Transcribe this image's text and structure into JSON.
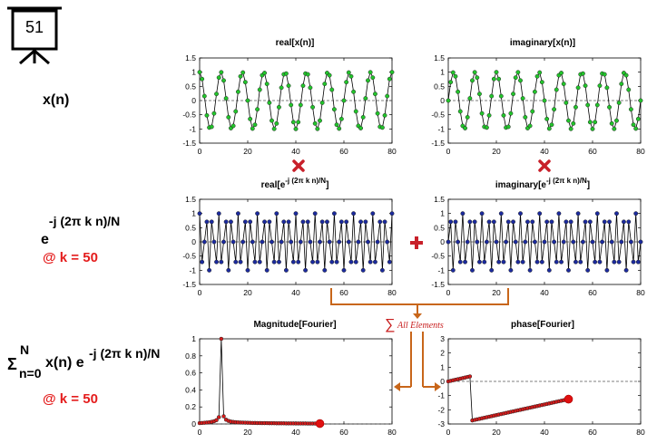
{
  "slide": {
    "number": "51"
  },
  "labels": {
    "xn": "x(n)",
    "exp_base": "e",
    "exp_sup": "-j (2π k n)/N",
    "k1": "@ k = 50",
    "sum_sigma": "Σ",
    "sum_top": "N",
    "sum_bottom": "n=0",
    "sum_body": "x(n) e",
    "sum_sup": "-j (2π k n)/N",
    "k2": "@ k = 50",
    "all_elements": "All Elements",
    "sum_symbol": "∑"
  },
  "colors": {
    "green_marker": "#22c42b",
    "blue_marker": "#1b2a9e",
    "red_marker": "#d81a1a",
    "arrow": "#c8661a",
    "cross": "#c8202a"
  },
  "chart_data": [
    {
      "id": "real_x",
      "type": "line",
      "title": "real[x(n)]",
      "xlim": [
        0,
        80
      ],
      "ylim": [
        -1.5,
        1.5
      ],
      "xticks": [
        0,
        20,
        40,
        60,
        80
      ],
      "yticks": [
        -1.5,
        -1,
        -0.5,
        0,
        0.5,
        1,
        1.5
      ],
      "ytick_labels": [
        "-1.5",
        "-1",
        "-0.5",
        "0",
        "0.5",
        "1",
        "1.5"
      ],
      "marker_color": "#22c42b",
      "x_range": [
        0,
        80
      ],
      "function": "cos(2*pi*9*n/80)"
    },
    {
      "id": "imag_x",
      "type": "line",
      "title": "imaginary[x(n)]",
      "xlim": [
        0,
        80
      ],
      "ylim": [
        -1.5,
        1.5
      ],
      "xticks": [
        0,
        20,
        40,
        60,
        80
      ],
      "yticks": [
        -1.5,
        -1,
        -0.5,
        0,
        0.5,
        1,
        1.5
      ],
      "ytick_labels": [
        "-1.5",
        "-1",
        "-0.5",
        "0",
        "0.5",
        "1",
        "1.5"
      ],
      "marker_color": "#22c42b",
      "x_range": [
        0,
        80
      ],
      "function": "sin(2*pi*9*n/80)"
    },
    {
      "id": "real_e",
      "type": "line",
      "title_main": "real[e",
      "title_sup": "-j (2π k n)/N",
      "title_end": "]",
      "xlim": [
        0,
        80
      ],
      "ylim": [
        -1.5,
        1.5
      ],
      "xticks": [
        0,
        20,
        40,
        60,
        80
      ],
      "yticks": [
        -1.5,
        -1,
        -0.5,
        0,
        0.5,
        1,
        1.5
      ],
      "ytick_labels": [
        "-1.5",
        "-1",
        "-0.5",
        "0",
        "0.5",
        "1",
        "1.5"
      ],
      "marker_color": "#1b2a9e",
      "x_range": [
        0,
        80
      ],
      "function": "cos(2*pi*50*n/80)"
    },
    {
      "id": "imag_e",
      "type": "line",
      "title_main": "imaginary[e",
      "title_sup": "-j (2π k n)/N",
      "title_end": "]",
      "xlim": [
        0,
        80
      ],
      "ylim": [
        -1.5,
        1.5
      ],
      "xticks": [
        0,
        20,
        40,
        60,
        80
      ],
      "yticks": [
        -1.5,
        -1,
        -0.5,
        0,
        0.5,
        1,
        1.5
      ],
      "ytick_labels": [
        "-1.5",
        "-1",
        "-0.5",
        "0",
        "0.5",
        "1",
        "1.5"
      ],
      "marker_color": "#1b2a9e",
      "x_range": [
        0,
        80
      ],
      "function": "-sin(2*pi*50*n/80)"
    },
    {
      "id": "magnitude",
      "type": "line",
      "title": "Magnitude[Fourier]",
      "xlim": [
        0,
        80
      ],
      "ylim": [
        0,
        1
      ],
      "xticks": [
        0,
        20,
        40,
        60,
        80
      ],
      "yticks": [
        0,
        0.2,
        0.4,
        0.6,
        0.8,
        1
      ],
      "ytick_labels": [
        "0",
        "0.2",
        "0.4",
        "0.6",
        "0.8",
        "1"
      ],
      "marker_color": "#d81a1a",
      "x": [
        0,
        1,
        2,
        3,
        4,
        5,
        6,
        7,
        8,
        9,
        10,
        11,
        12,
        13,
        14,
        15,
        16,
        17,
        18,
        19,
        20,
        21,
        22,
        23,
        24,
        25,
        26,
        27,
        28,
        29,
        30,
        31,
        32,
        33,
        34,
        35,
        36,
        37,
        38,
        39,
        40,
        41,
        42,
        43,
        44,
        45,
        46,
        47,
        48,
        49,
        50
      ],
      "y": [
        0.01,
        0.012,
        0.014,
        0.017,
        0.02,
        0.025,
        0.032,
        0.045,
        0.08,
        1.0,
        0.09,
        0.05,
        0.036,
        0.028,
        0.024,
        0.021,
        0.019,
        0.017,
        0.016,
        0.015,
        0.014,
        0.013,
        0.012,
        0.012,
        0.011,
        0.011,
        0.01,
        0.01,
        0.01,
        0.009,
        0.009,
        0.009,
        0.008,
        0.008,
        0.008,
        0.008,
        0.007,
        0.007,
        0.007,
        0.007,
        0.006,
        0.006,
        0.006,
        0.006,
        0.006,
        0.005,
        0.005,
        0.005,
        0.005,
        0.005,
        0.005
      ],
      "final_point": [
        50,
        0.005
      ],
      "dashed_baseline": 0
    },
    {
      "id": "phase",
      "type": "line",
      "title": "phase[Fourier]",
      "xlim": [
        0,
        80
      ],
      "ylim": [
        -3,
        3
      ],
      "xticks": [
        0,
        20,
        40,
        60,
        80
      ],
      "yticks": [
        -3,
        -2,
        -1,
        0,
        1,
        2,
        3
      ],
      "ytick_labels": [
        "-3",
        "-2",
        "-1",
        "0",
        "1",
        "2",
        "3"
      ],
      "marker_color": "#d81a1a",
      "segments": [
        {
          "x_start": 0,
          "x_end": 9,
          "y_start": 0.0,
          "y_end": 0.35
        },
        {
          "x_start": 10,
          "x_end": 50,
          "y_start": -2.75,
          "y_end": -1.25
        }
      ],
      "final_point": [
        50,
        -1.25
      ]
    }
  ]
}
